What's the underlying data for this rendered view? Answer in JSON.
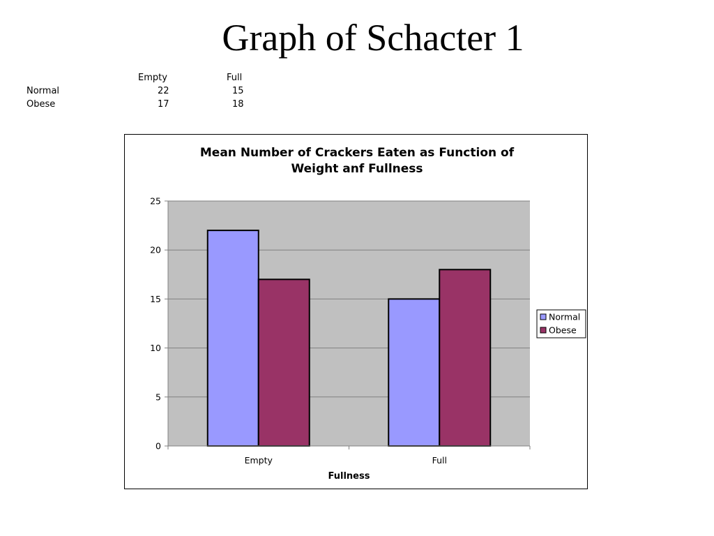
{
  "slide": {
    "title": "Graph of Schacter 1"
  },
  "table": {
    "columns": [
      "Empty",
      "Full"
    ],
    "rows": [
      {
        "label": "Normal",
        "values": [
          "22",
          "15"
        ]
      },
      {
        "label": "Obese",
        "values": [
          "17",
          "18"
        ]
      }
    ]
  },
  "chart_data": {
    "type": "bar",
    "title_lines": [
      "Mean Number of Crackers Eaten as Function of",
      "Weight anf Fullness"
    ],
    "categories": [
      "Empty",
      "Full"
    ],
    "series": [
      {
        "name": "Normal",
        "values": [
          22,
          15
        ],
        "color": "#9999ff"
      },
      {
        "name": "Obese",
        "values": [
          17,
          18
        ],
        "color": "#993366"
      }
    ],
    "xlabel": "Fullness",
    "ylabel": "",
    "ylim": [
      0,
      25
    ],
    "yticks": [
      0,
      5,
      10,
      15,
      20,
      25
    ],
    "grid": true,
    "plot_background": "#c0c0c0",
    "legend_position": "right"
  }
}
